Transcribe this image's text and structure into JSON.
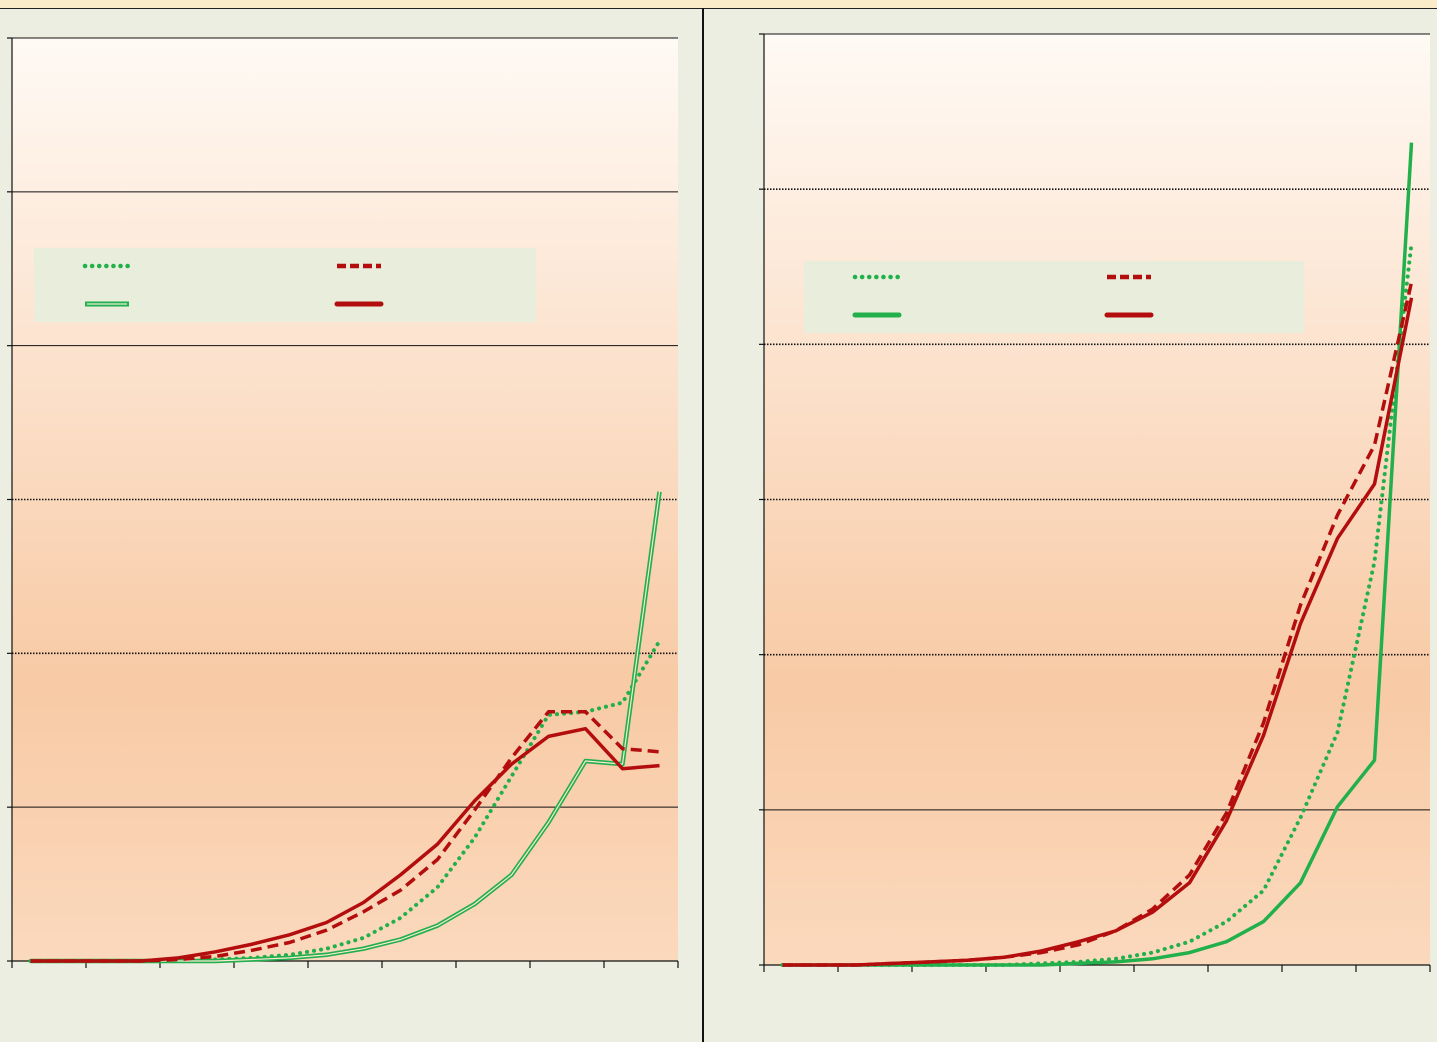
{
  "colors": {
    "green": "#21b04b",
    "red": "#b30d0d",
    "page_background": "#ebeee0",
    "plot_top": "#fffaf5",
    "plot_bottom": "#f8caa5",
    "legend_background": "#e9eddb"
  },
  "chart_data": [
    {
      "type": "line",
      "title": "",
      "xlabel": "",
      "ylabel": "",
      "x": [
        1,
        2,
        3,
        4,
        5,
        6,
        7,
        8,
        9,
        10,
        11,
        12,
        13,
        14,
        15,
        16,
        17,
        18
      ],
      "xlim": [
        0.5,
        18.5
      ],
      "ylim": [
        0,
        6
      ],
      "grid": true,
      "legend_position": "top-left",
      "series": [
        {
          "color": "#21b04b",
          "style": "dotted",
          "values": [
            0,
            0,
            0,
            0,
            0,
            0.01,
            0.02,
            0.04,
            0.08,
            0.15,
            0.28,
            0.48,
            0.8,
            1.2,
            1.6,
            1.62,
            1.68,
            2.08
          ]
        },
        {
          "color": "#21b04b",
          "style": "double",
          "values": [
            0,
            0,
            0,
            0,
            0,
            0,
            0.01,
            0.02,
            0.04,
            0.08,
            0.14,
            0.23,
            0.37,
            0.56,
            0.9,
            1.3,
            1.28,
            3.05
          ]
        },
        {
          "color": "#b30d0d",
          "style": "dashed",
          "values": [
            0,
            0,
            0,
            0,
            0.01,
            0.03,
            0.07,
            0.12,
            0.2,
            0.32,
            0.46,
            0.66,
            0.98,
            1.32,
            1.62,
            1.62,
            1.38,
            1.36
          ]
        },
        {
          "color": "#b30d0d",
          "style": "solid",
          "values": [
            0,
            0,
            0,
            0,
            0.02,
            0.06,
            0.11,
            0.17,
            0.25,
            0.38,
            0.56,
            0.76,
            1.04,
            1.28,
            1.46,
            1.51,
            1.25,
            1.27
          ]
        }
      ]
    },
    {
      "type": "line",
      "title": "",
      "xlabel": "",
      "ylabel": "",
      "x": [
        1,
        2,
        3,
        4,
        5,
        6,
        7,
        8,
        9,
        10,
        11,
        12,
        13,
        14,
        15,
        16,
        17,
        18
      ],
      "xlim": [
        0.5,
        18.5
      ],
      "ylim": [
        0,
        6
      ],
      "grid": true,
      "legend_position": "top-left",
      "series": [
        {
          "color": "#21b04b",
          "style": "dotted",
          "values": [
            0,
            0,
            0,
            0,
            0,
            0,
            0,
            0.01,
            0.02,
            0.04,
            0.08,
            0.15,
            0.28,
            0.48,
            0.95,
            1.5,
            2.6,
            4.65
          ]
        },
        {
          "color": "#21b04b",
          "style": "solid",
          "values": [
            0,
            0,
            0,
            0,
            0,
            0,
            0,
            0,
            0.01,
            0.02,
            0.04,
            0.08,
            0.15,
            0.28,
            0.53,
            1.02,
            1.32,
            5.3
          ]
        },
        {
          "color": "#b30d0d",
          "style": "dashed",
          "values": [
            0,
            0,
            0,
            0.01,
            0.02,
            0.03,
            0.05,
            0.08,
            0.13,
            0.22,
            0.36,
            0.58,
            0.98,
            1.56,
            2.32,
            2.9,
            3.35,
            4.4
          ]
        },
        {
          "color": "#b30d0d",
          "style": "solid",
          "values": [
            0,
            0,
            0,
            0.01,
            0.02,
            0.03,
            0.05,
            0.09,
            0.15,
            0.22,
            0.34,
            0.53,
            0.93,
            1.48,
            2.2,
            2.75,
            3.1,
            4.3
          ]
        }
      ]
    }
  ]
}
